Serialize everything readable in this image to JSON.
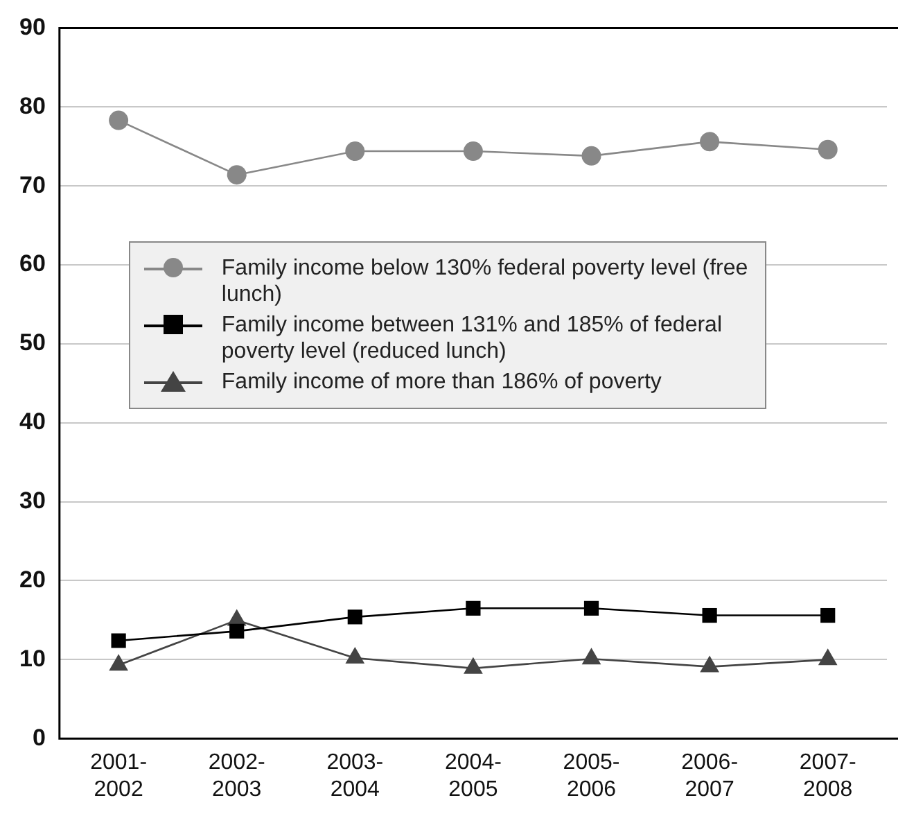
{
  "chart_data": {
    "type": "line",
    "categories": [
      "2001-2002",
      "2002-2003",
      "2003-2004",
      "2004-2005",
      "2005-2006",
      "2006-2007",
      "2007-2008"
    ],
    "series": [
      {
        "name": "Family income below 130% federal poverty level (free lunch)",
        "color": "#888888",
        "marker": "circle",
        "values": [
          78.3,
          71.4,
          74.4,
          74.4,
          73.8,
          75.6,
          74.6
        ]
      },
      {
        "name": "Family income between 131% and 185% of federal poverty level (reduced lunch)",
        "color": "#000000",
        "marker": "square",
        "values": [
          12.4,
          13.6,
          15.4,
          16.5,
          16.5,
          15.6,
          15.6
        ]
      },
      {
        "name": "Family income of more than 186% of poverty",
        "color": "#444444",
        "marker": "triangle",
        "values": [
          9.3,
          15.0,
          10.2,
          8.9,
          10.1,
          9.1,
          10.0
        ]
      }
    ],
    "ylim": [
      0,
      90
    ],
    "yticks": [
      0,
      10,
      20,
      30,
      40,
      50,
      60,
      70,
      80,
      90
    ],
    "grid": "y",
    "legend": "left"
  }
}
